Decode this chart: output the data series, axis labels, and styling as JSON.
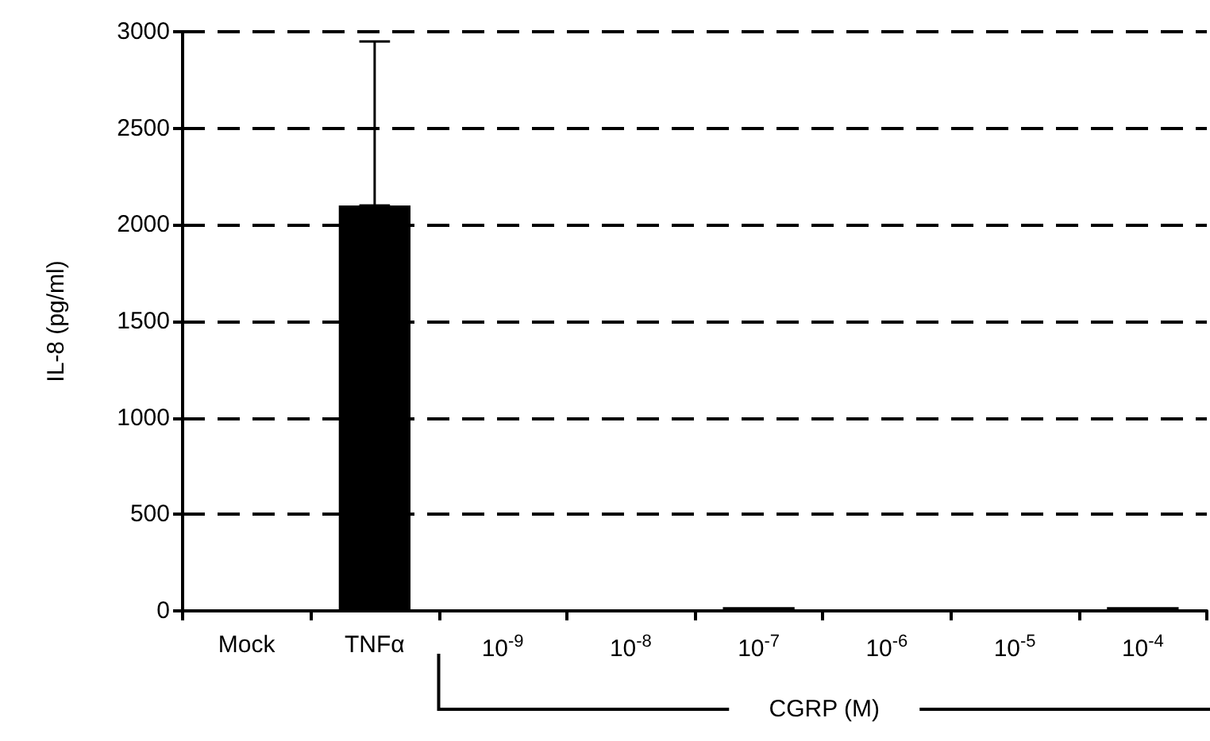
{
  "chart_data": {
    "type": "bar",
    "ylabel": "IL-8 (pg/ml)",
    "categories": [
      "Mock",
      "TNFα",
      "10$^{-9}$",
      "10$^{-8}$",
      "10$^{-7}$",
      "10$^{-6}$",
      "10$^{-5}$",
      "10$^{-4}$"
    ],
    "values": [
      0,
      2100,
      0,
      0,
      20,
      0,
      0,
      20
    ],
    "errors": [
      null,
      [
        2100,
        2950
      ],
      null,
      null,
      null,
      null,
      null,
      null
    ],
    "color": "#000000",
    "ylim": [
      0,
      3000
    ],
    "yticks": [
      0,
      500,
      1000,
      1500,
      2000,
      2500,
      3000
    ],
    "grid": "y",
    "line_style": "dashed",
    "annotations": [
      "CGRP (M)"
    ]
  }
}
